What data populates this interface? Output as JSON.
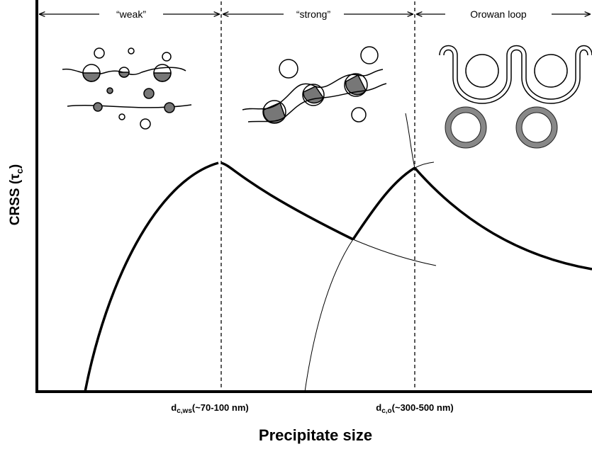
{
  "regions": [
    {
      "label": "“weak”"
    },
    {
      "label": "“strong”"
    },
    {
      "label": "Orowan loop"
    }
  ],
  "y_axis_label": {
    "main": "CRSS (τ",
    "sub": "c",
    "end": ")"
  },
  "x_axis_label": "Precipitate size",
  "markers": [
    {
      "main": "d",
      "sub": "c,ws",
      "text": "(~70-100 nm)"
    },
    {
      "main": "d",
      "sub": "c,o",
      "text": "(~300-500 nm)"
    }
  ]
}
